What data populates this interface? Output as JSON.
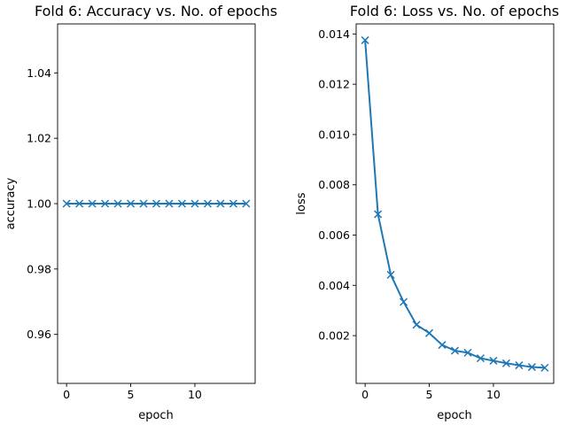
{
  "colors": {
    "series": "#1f77b4"
  },
  "chart_data": [
    {
      "type": "line",
      "title": "Fold 6: Accuracy vs. No. of epochs",
      "xlabel": "epoch",
      "ylabel": "accuracy",
      "xlim": [
        -0.7,
        14.7
      ],
      "ylim": [
        0.945,
        1.055
      ],
      "xticks": [
        0,
        5,
        10
      ],
      "yticks": [
        0.96,
        0.98,
        1.0,
        1.02,
        1.04
      ],
      "ytick_labels": [
        "0.96",
        "0.98",
        "1.00",
        "1.02",
        "1.04"
      ],
      "marker": "x",
      "grid": false,
      "x": [
        0,
        1,
        2,
        3,
        4,
        5,
        6,
        7,
        8,
        9,
        10,
        11,
        12,
        13,
        14
      ],
      "series": [
        {
          "values": [
            1.0,
            1.0,
            1.0,
            1.0,
            1.0,
            1.0,
            1.0,
            1.0,
            1.0,
            1.0,
            1.0,
            1.0,
            1.0,
            1.0,
            1.0
          ]
        }
      ]
    },
    {
      "type": "line",
      "title": "Fold 6: Loss vs. No. of epochs",
      "xlabel": "epoch",
      "ylabel": "loss",
      "xlim": [
        -0.7,
        14.7
      ],
      "ylim": [
        0.0001,
        0.0144
      ],
      "xticks": [
        0,
        5,
        10
      ],
      "yticks": [
        0.002,
        0.004,
        0.006,
        0.008,
        0.01,
        0.012,
        0.014
      ],
      "ytick_labels": [
        "0.002",
        "0.004",
        "0.006",
        "0.008",
        "0.010",
        "0.012",
        "0.014"
      ],
      "marker": "x",
      "grid": false,
      "x": [
        0,
        1,
        2,
        3,
        4,
        5,
        6,
        7,
        8,
        9,
        10,
        11,
        12,
        13,
        14
      ],
      "series": [
        {
          "values": [
            0.01375,
            0.00683,
            0.00442,
            0.00334,
            0.00243,
            0.0021,
            0.00163,
            0.0014,
            0.00132,
            0.0011,
            0.001,
            0.0009,
            0.00082,
            0.00075,
            0.00072
          ]
        }
      ]
    }
  ]
}
